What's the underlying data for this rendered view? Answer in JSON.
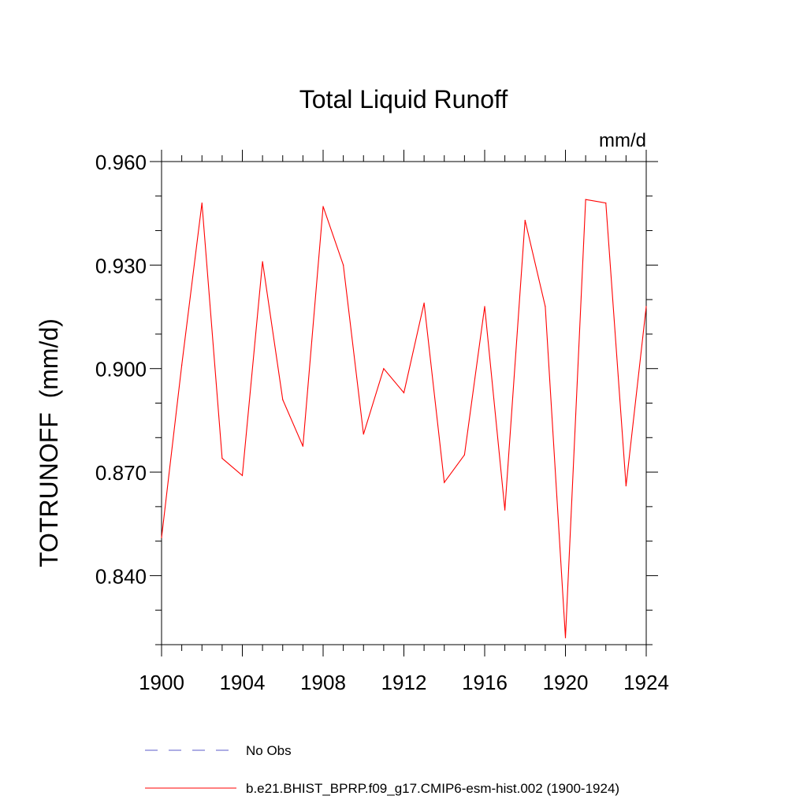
{
  "chart_data": {
    "type": "line",
    "title": "Total Liquid Runoff",
    "units_label": "mm/d",
    "ylabel": "TOTRUNOFF  (mm/d)",
    "xlabel": "",
    "xlim": [
      1900,
      1924
    ],
    "ylim": [
      0.82,
      0.96
    ],
    "x_ticks": [
      1900,
      1904,
      1908,
      1912,
      1916,
      1920,
      1924
    ],
    "x_tick_labels": [
      "1900",
      "1904",
      "1908",
      "1912",
      "1916",
      "1920",
      "1924"
    ],
    "y_ticks": [
      0.84,
      0.87,
      0.9,
      0.93,
      0.96
    ],
    "y_tick_labels": [
      "0.840",
      "0.870",
      "0.900",
      "0.930",
      "0.960"
    ],
    "x": [
      1900,
      1901,
      1902,
      1903,
      1904,
      1905,
      1906,
      1907,
      1908,
      1909,
      1910,
      1911,
      1912,
      1913,
      1914,
      1915,
      1916,
      1917,
      1918,
      1919,
      1920,
      1921,
      1922,
      1923,
      1924
    ],
    "series": [
      {
        "name": "b.e21.BHIST_BPRP.f09_g17.CMIP6-esm-hist.002 (1900-1924)",
        "color": "#ff0000",
        "style": "solid",
        "values": [
          0.851,
          0.901,
          0.948,
          0.874,
          0.869,
          0.931,
          0.891,
          0.8775,
          0.947,
          0.93,
          0.881,
          0.9,
          0.893,
          0.919,
          0.867,
          0.875,
          0.918,
          0.859,
          0.943,
          0.918,
          0.822,
          0.949,
          0.948,
          0.866,
          0.918
        ]
      }
    ],
    "legend": {
      "placement": "bottom",
      "entries": [
        {
          "label": "No Obs",
          "color": "#5b5bc8",
          "style": "dashed"
        },
        {
          "label": "b.e21.BHIST_BPRP.f09_g17.CMIP6-esm-hist.002 (1900-1924)",
          "color": "#ff0000",
          "style": "solid"
        }
      ]
    }
  }
}
